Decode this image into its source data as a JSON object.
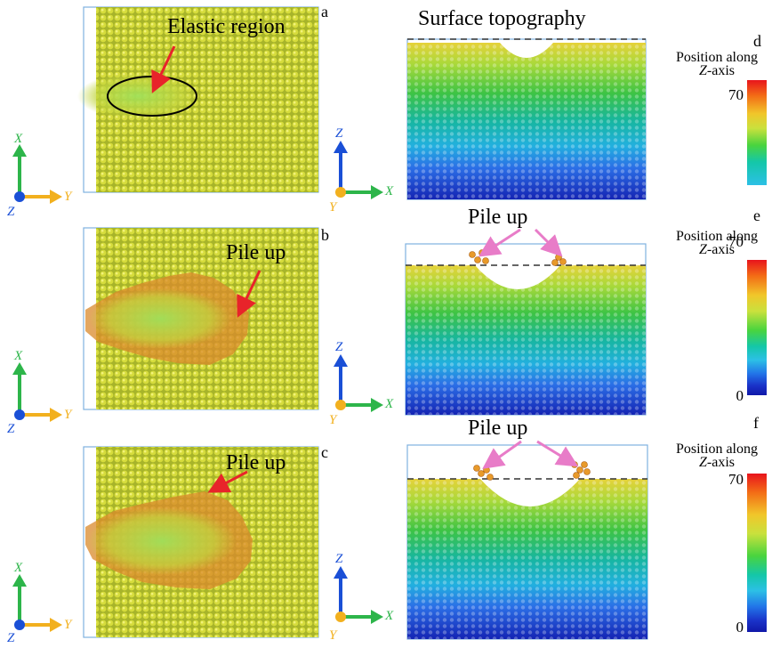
{
  "panels": {
    "a": {
      "letter": "a",
      "annotation": "Elastic region"
    },
    "b": {
      "letter": "b",
      "annotation": "Pile up"
    },
    "c": {
      "letter": "c",
      "annotation": "Pile up"
    },
    "d": {
      "letter": "d",
      "title": "Surface topography"
    },
    "e": {
      "letter": "e",
      "annotation": "Pile up"
    },
    "f": {
      "letter": "f",
      "annotation": "Pile up"
    }
  },
  "axes_top_view": {
    "up": "X",
    "right": "Y",
    "out": "Z"
  },
  "axes_side_view": {
    "up": "Z",
    "right": "X",
    "out": "Y"
  },
  "colorbar": {
    "title_line1": "Position along",
    "title_axis": "Z",
    "title_suffix": "-axis",
    "max_label": "70",
    "min_label": "0"
  },
  "colors": {
    "arrow_red": "#e8242a",
    "arrow_pink": "#e87cc8",
    "axis_green": "#2db54a",
    "axis_orange": "#f2b01e",
    "axis_blue": "#1a4fd6",
    "frame_blue": "#7fb2e0"
  }
}
